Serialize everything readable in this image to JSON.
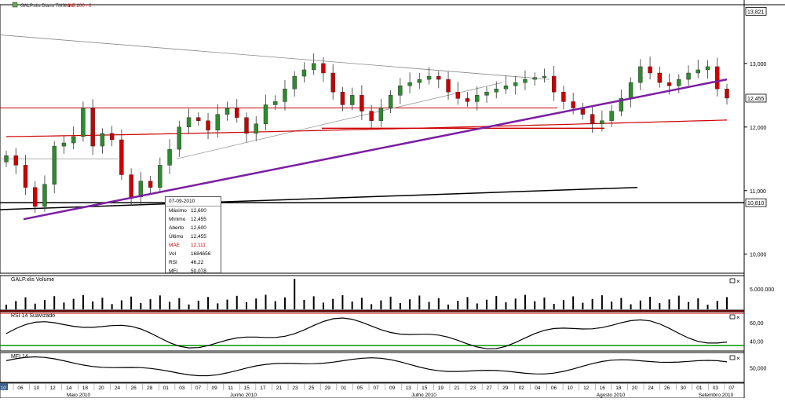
{
  "window": {
    "main_panel_legend": [
      "GALP.xlis Diário TMS: 1",
      "MAE 200 - 0"
    ],
    "volume_panel_title": "GALP.xlis Volume",
    "rsi_panel_title": "RSI 14 Suavizado",
    "mfi_panel_title": "MFI 14"
  },
  "price_labels": {
    "high_marker": "13,821",
    "last_marker": "12,455",
    "support_marker": "10,810",
    "ticks": [
      "13,000",
      "12,000",
      "11,000",
      "10,000"
    ]
  },
  "volume_ticks": [
    "5.000.000"
  ],
  "rsi_ticks": [
    "60,00",
    "40,00"
  ],
  "mfi_ticks": [
    "50,000"
  ],
  "tooltip": {
    "date": "07-09-2010",
    "rows": [
      {
        "label": "Máximo",
        "value": "12,600"
      },
      {
        "label": "Mínimo",
        "value": "12,455"
      },
      {
        "label": "Aberto",
        "value": "12,600"
      },
      {
        "label": "Último",
        "value": "12,455"
      },
      {
        "label": "MAE",
        "value": "12,111"
      },
      {
        "label": "Vol",
        "value": "1684656"
      },
      {
        "label": "RSI",
        "value": "46,22"
      },
      {
        "label": "MFI",
        "value": "50,078"
      }
    ]
  },
  "colors": {
    "up_candle": "#2e8b2e",
    "down_candle": "#cc0000",
    "trendline": "#7b1fa2",
    "moving_average": "#cc0000",
    "support_line": "#000000",
    "rsi_upper_band": "#cc0000",
    "rsi_lower_band": "#009900"
  },
  "chart_data": {
    "type": "candlestick",
    "y_range": [
      9.7,
      13.9
    ],
    "x_labels": [
      "06",
      "10",
      "12",
      "14",
      "18",
      "20",
      "24",
      "26",
      "28",
      "01",
      "03",
      "07",
      "09",
      "11",
      "15",
      "17",
      "21",
      "23",
      "25",
      "29",
      "01",
      "05",
      "07",
      "09",
      "13",
      "15",
      "19",
      "21",
      "23",
      "27",
      "29",
      "02",
      "04",
      "06",
      "10",
      "12",
      "16",
      "18",
      "20",
      "24",
      "26",
      "30",
      "01",
      "03",
      "07"
    ],
    "month_labels": [
      "Maio 2010",
      "Junho 2010",
      "Julho 2010",
      "Agosto 2010",
      "Setembro 2010"
    ],
    "closes": [
      11.55,
      11.4,
      11.05,
      10.75,
      11.1,
      11.7,
      11.75,
      11.85,
      12.3,
      11.7,
      11.9,
      11.8,
      11.25,
      10.9,
      11.15,
      11.05,
      11.4,
      11.65,
      12.0,
      12.15,
      12.1,
      11.95,
      12.2,
      12.3,
      12.15,
      11.9,
      12.05,
      12.35,
      12.4,
      12.6,
      12.8,
      12.9,
      13.0,
      12.85,
      12.55,
      12.35,
      12.5,
      12.25,
      12.1,
      12.3,
      12.5,
      12.65,
      12.7,
      12.75,
      12.8,
      12.75,
      12.55,
      12.45,
      12.4,
      12.5,
      12.55,
      12.6,
      12.65,
      12.7,
      12.75,
      12.78,
      12.8,
      12.55,
      12.4,
      12.3,
      12.2,
      12.05,
      12.1,
      12.25,
      12.45,
      12.7,
      12.95,
      12.85,
      12.7,
      12.65,
      12.75,
      12.85,
      12.9,
      12.95,
      12.6,
      12.455
    ],
    "ma200": {
      "from": 11.85,
      "to": 12.11
    },
    "trendline": {
      "from": 10.55,
      "to": 12.75
    },
    "volume_max": 5000000,
    "rsi_range": [
      30,
      70
    ],
    "mfi_range": [
      30,
      70
    ],
    "last": {
      "date": "07-09-2010",
      "close": 12.455,
      "mae": 12.111,
      "rsi": 46.22,
      "mfi": 50.078,
      "volume": 1684656
    }
  }
}
